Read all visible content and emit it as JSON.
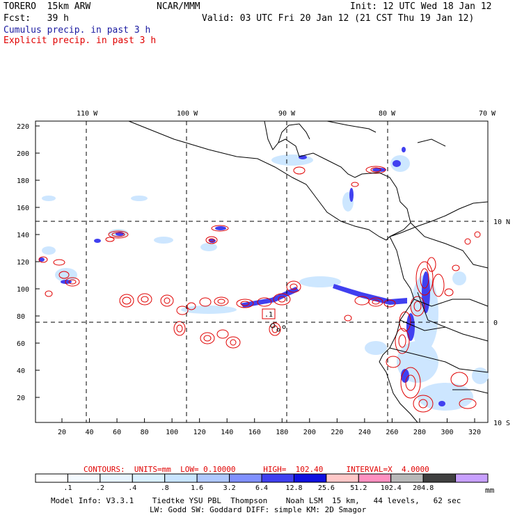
{
  "header": {
    "model": "TORERO  15km ARW",
    "org": "NCAR/MMM",
    "init": "Init: 12 UTC Wed 18 Jan 12",
    "fcst": "Fcst:   39 h",
    "valid": "Valid: 03 UTC Fri 20 Jan 12 (21 CST Thu 19 Jan 12)",
    "legend_cumulus": "Cumulus precip. in past 3 h",
    "legend_explicit": "Explicit precip. in past 3 h",
    "colors": {
      "cumulus": "#1a1aa0",
      "explicit": "#e00000"
    }
  },
  "map": {
    "top_lon_labels": [
      "110 W",
      "100 W",
      "90 W",
      "80 W",
      "70 W"
    ],
    "right_lat_labels": [
      "10 N",
      "0",
      "10 S"
    ],
    "left_y_labels": [
      "220",
      "200",
      "180",
      "160",
      "140",
      "120",
      "100",
      "80",
      "60",
      "40",
      "20"
    ],
    "bottom_x_labels": [
      "20",
      "40",
      "60",
      "80",
      "100",
      "120",
      "140",
      "160",
      "180",
      "200",
      "220",
      "240",
      "260",
      "280",
      "300",
      "320"
    ],
    "high_marker_label": ".1"
  },
  "contours_info": {
    "text": "CONTOURS:  UNITS=mm  LOW= 0.10000      HIGH=  102.40     INTERVAL=X  4.0000"
  },
  "colorbar": {
    "labels": [
      ".1",
      ".2",
      ".4",
      ".8",
      "1.6",
      "3.2",
      "6.4",
      "12.8",
      "25.6",
      "51.2",
      "102.4",
      "204.8"
    ],
    "unit": "mm",
    "colors": [
      "#ffffff",
      "#f4faff",
      "#e8f4ff",
      "#daf0ff",
      "#c8e4ff",
      "#b0c8ff",
      "#8090ff",
      "#4040f0",
      "#1010e0",
      "#ffc8c8",
      "#ff90c0",
      "#b8b8b8",
      "#404040",
      "#c8a0ff"
    ]
  },
  "footer": {
    "line1": "Model Info: V3.3.1    Tiedtke YSU PBL  Thompson    Noah LSM  15 km,   44 levels,   62 sec",
    "line2": "LW: Godd SW: Goddard DIFF: simple KM: 2D Smagor"
  }
}
